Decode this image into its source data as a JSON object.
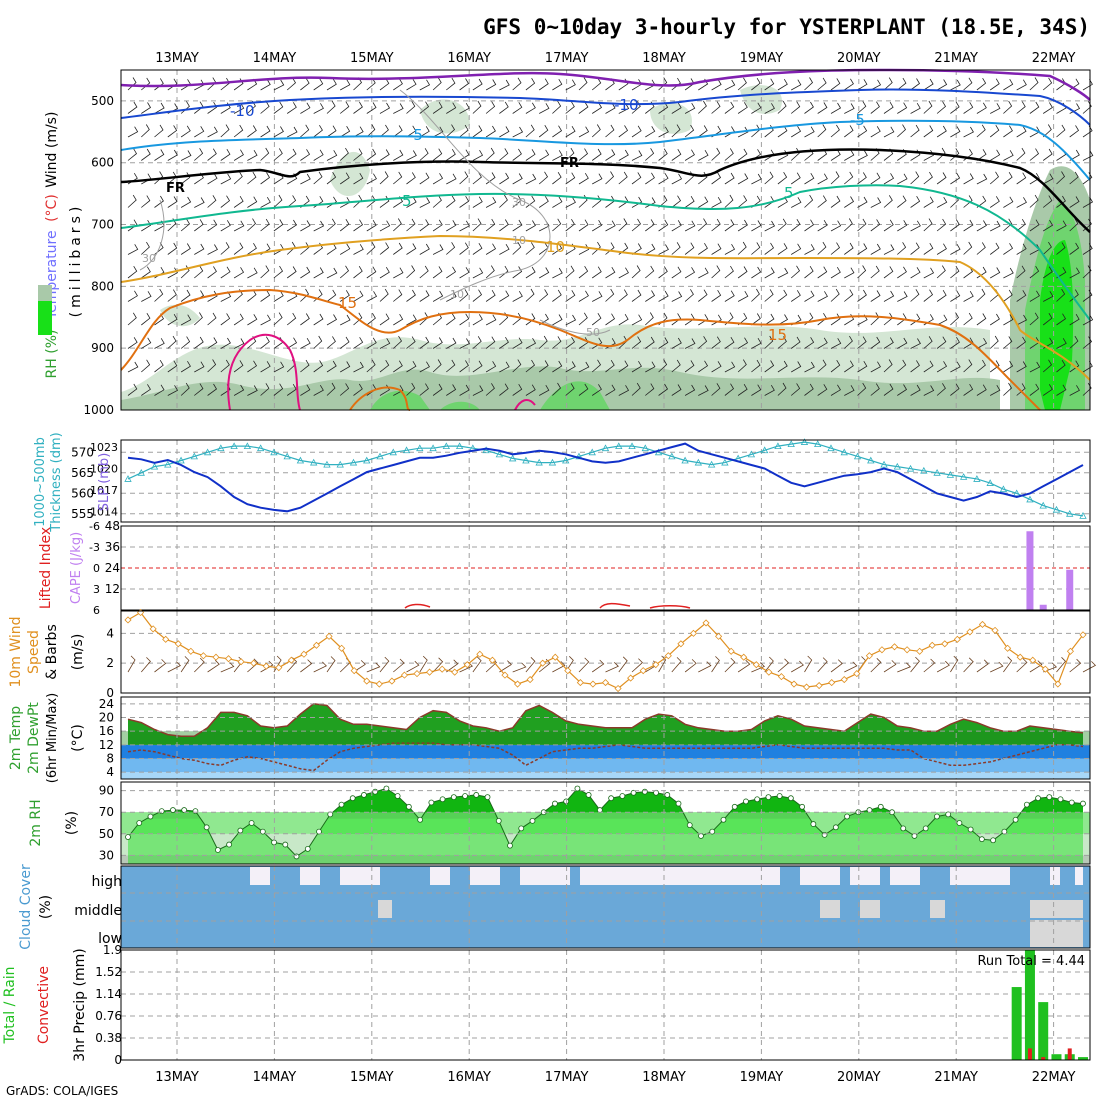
{
  "title": "GFS 0~10day 3-hourly for YSTERPLANT (18.5E, 34S)",
  "footer": "GrADS: COLA/IGES",
  "colors": {
    "rh_light": "#d4e6d4",
    "rh_mid": "#a9c9a9",
    "rh_green": "#6fd46f",
    "rh_bright": "#18e018",
    "thickness": "#30b0c0",
    "slp": "#1030c8",
    "cape": "#c080f0",
    "lifted": "#e02020",
    "wind10": "#e09020",
    "temp_fill": "#20a020",
    "dewpt_fill": "#2080e0",
    "cloud_fill": "#6aa8d8",
    "precip_total": "#20c020",
    "precip_conv": "#e02020"
  },
  "chart_data": [
    {
      "type": "line",
      "name": "upper-air cross-section",
      "x": [
        "13MAY",
        "14MAY",
        "15MAY",
        "16MAY",
        "17MAY",
        "18MAY",
        "19MAY",
        "20MAY",
        "21MAY",
        "22MAY"
      ],
      "ylabel_parts": [
        "RH (%)",
        "Temperature",
        "(°C)",
        "Wind (m/s)"
      ],
      "ylabel2": "(millibars)",
      "yticks": [
        500,
        600,
        700,
        800,
        900,
        1000
      ],
      "ylim": [
        1000,
        450
      ],
      "contour_labels": [
        "-10",
        "-10",
        "-5",
        "-5",
        "FR",
        "FR",
        "5",
        "5",
        "10",
        "15",
        "15",
        "30",
        "30",
        "10",
        "10",
        "50"
      ]
    },
    {
      "type": "line",
      "name": "thickness and SLP",
      "ylabel_left": [
        "1000~500mb",
        "Thickness (dm)"
      ],
      "ylabel_right": "SLP (mb)",
      "yticks_left": [
        555,
        560,
        565,
        570
      ],
      "yticks_right": [
        1014,
        1017,
        1020,
        1023
      ],
      "series": [
        {
          "values": [
            563.5,
            565,
            566.5,
            567,
            568,
            569,
            570,
            571,
            571.5,
            571.5,
            571,
            570,
            569,
            568,
            567.5,
            567,
            567,
            567.5,
            568,
            569,
            570,
            570.5,
            571,
            571,
            571.5,
            571.5,
            571,
            570.5,
            569.5,
            568.5,
            568,
            567.5,
            567.5,
            568,
            569,
            570,
            571,
            571.5,
            571.5,
            571,
            570,
            569,
            568,
            567.5,
            567,
            567.5,
            568.5,
            569.5,
            570.5,
            571.5,
            572,
            572.5,
            572,
            571,
            570,
            569,
            568,
            567,
            566.5,
            566,
            565.5,
            565,
            564.5,
            564,
            563.5,
            562.5,
            561,
            560,
            558.5,
            557,
            556,
            555,
            554.5
          ]
        },
        {
          "values": [
            1021.5,
            1021.3,
            1020.8,
            1021.2,
            1020.5,
            1019.5,
            1018.8,
            1017.5,
            1016,
            1015,
            1014.5,
            1014.2,
            1014,
            1014.5,
            1015.5,
            1016.5,
            1017.5,
            1018.5,
            1019.5,
            1020,
            1020.5,
            1021,
            1021.5,
            1021.5,
            1021.8,
            1022.2,
            1022.5,
            1022.8,
            1022.5,
            1022,
            1022.2,
            1022.5,
            1022.3,
            1022,
            1021.5,
            1021,
            1020.8,
            1021,
            1021.5,
            1022,
            1022.5,
            1023,
            1023.5,
            1022.5,
            1022,
            1021.5,
            1021,
            1020.5,
            1020,
            1019,
            1018,
            1017.5,
            1018,
            1018.5,
            1019,
            1019.2,
            1019.5,
            1020,
            1019.5,
            1018.5,
            1017.5,
            1016.5,
            1016,
            1015.5,
            1016,
            1016.8,
            1016.5,
            1016,
            1016.5,
            1017.5,
            1018.5,
            1019.5,
            1020.5
          ]
        }
      ]
    },
    {
      "type": "bar",
      "name": "lifted index and CAPE",
      "ylabel_left": "Lifted Index",
      "ylabel_right": "CAPE (J/kg)",
      "yticks_left": [
        -6,
        -3,
        0,
        3,
        6
      ],
      "yticks_right": [
        12,
        24,
        36,
        48
      ],
      "ylim_right": [
        0,
        48
      ],
      "series": [
        {
          "values": [
            0,
            0,
            0,
            0,
            0,
            0,
            0,
            0,
            0,
            0,
            0,
            0,
            0,
            0,
            0,
            0,
            0,
            0,
            0,
            0,
            0,
            0,
            0,
            0,
            0,
            0,
            0,
            0,
            0,
            0,
            0,
            0,
            0,
            0,
            0,
            0,
            0,
            0,
            0,
            0,
            0,
            0,
            0,
            0,
            0,
            0,
            0,
            0,
            0,
            0,
            0,
            0,
            0,
            0,
            0,
            0,
            0,
            0,
            0,
            0,
            0,
            0,
            0,
            0,
            0,
            0,
            0,
            0,
            45,
            3,
            0,
            23,
            0
          ]
        }
      ]
    },
    {
      "type": "line",
      "name": "10m wind",
      "ylabel": [
        "10m Wind",
        "Speed",
        "& Barbs",
        "(m/s)"
      ],
      "yticks": [
        0,
        2,
        4
      ],
      "ylim": [
        0,
        5.5
      ],
      "series": [
        {
          "values": [
            4.9,
            5.4,
            4.3,
            3.6,
            3.3,
            2.8,
            2.5,
            2.4,
            2.3,
            2.1,
            2.0,
            1.8,
            1.7,
            2.2,
            2.6,
            3.2,
            3.8,
            3.0,
            1.5,
            0.8,
            0.6,
            0.8,
            1.2,
            1.3,
            1.4,
            1.6,
            1.4,
            1.9,
            2.6,
            2.2,
            1.2,
            0.6,
            0.9,
            2.0,
            2.4,
            1.5,
            0.7,
            0.6,
            0.7,
            0.3,
            1.0,
            1.5,
            1.9,
            2.5,
            3.3,
            4.0,
            4.7,
            3.8,
            2.8,
            2.4,
            1.9,
            1.4,
            1.1,
            0.6,
            0.4,
            0.5,
            0.7,
            0.9,
            1.3,
            2.5,
            2.9,
            3.1,
            2.9,
            2.8,
            3.2,
            3.3,
            3.6,
            4.1,
            4.6,
            4.2,
            3.0,
            2.4,
            2.2,
            1.6,
            0.6,
            2.8,
            3.9
          ]
        }
      ]
    },
    {
      "type": "area",
      "name": "2m temperature",
      "ylabel": [
        "2m Temp",
        "2m DewPt",
        "(6hr Min/Max)",
        "(°C)"
      ],
      "yticks": [
        4,
        8,
        12,
        16,
        20,
        24
      ],
      "ylim": [
        2,
        26
      ],
      "series": [
        {
          "values": [
            19.5,
            18.5,
            16.5,
            15,
            14.5,
            14.5,
            17,
            21.5,
            21.5,
            20.5,
            17.5,
            17,
            17.5,
            21,
            24,
            23.5,
            19.5,
            18,
            18,
            17.5,
            17,
            16.5,
            20,
            22,
            21.5,
            19,
            17.5,
            17,
            16,
            17,
            22,
            23.5,
            21.5,
            19,
            18,
            17.5,
            17,
            17,
            17,
            19.5,
            21,
            20.5,
            18,
            17,
            16.5,
            16,
            16,
            16.5,
            19,
            20.5,
            19.5,
            17.5,
            17,
            16.5,
            16,
            18.5,
            21,
            20,
            17.5,
            17,
            16,
            16,
            18,
            19.5,
            18.5,
            17,
            16,
            16,
            17.5,
            17,
            16.5,
            16,
            15.5
          ]
        },
        {
          "values": [
            10,
            10.5,
            10,
            9,
            8,
            7.5,
            6.5,
            6,
            7.5,
            8.5,
            8,
            7,
            6,
            5,
            4.5,
            7.5,
            10,
            11,
            11.5,
            12,
            12.5,
            12.5,
            12.5,
            12.5,
            12,
            12,
            12,
            11.5,
            11,
            9,
            6,
            8,
            10,
            10.5,
            11,
            11,
            11.5,
            12,
            11.5,
            11,
            11,
            11,
            11,
            11,
            11,
            11,
            11,
            11,
            11.5,
            12,
            11.5,
            11,
            11,
            11,
            11,
            11,
            11,
            11,
            10.5,
            10.5,
            8,
            7,
            6,
            6,
            6.5,
            7,
            8,
            9,
            10,
            11,
            12,
            12,
            11.5
          ]
        }
      ]
    },
    {
      "type": "area",
      "name": "2m relative humidity",
      "ylabel": [
        "2m RH",
        "(%)"
      ],
      "yticks": [
        30,
        50,
        70,
        90
      ],
      "ylim": [
        22,
        98
      ],
      "series": [
        {
          "values": [
            47,
            60,
            66,
            71,
            72,
            72,
            71,
            56,
            35,
            40,
            53,
            60,
            52,
            42,
            40,
            29,
            36,
            52,
            68,
            77,
            83,
            86,
            89,
            92,
            85,
            75,
            63,
            79,
            82,
            84,
            85,
            86,
            84,
            62,
            39,
            55,
            62,
            70,
            78,
            80,
            92,
            86,
            72,
            83,
            85,
            88,
            89,
            88,
            86,
            78,
            58,
            48,
            52,
            63,
            75,
            80,
            82,
            84,
            85,
            83,
            75,
            59,
            49,
            56,
            66,
            70,
            72,
            75,
            70,
            55,
            48,
            55,
            66,
            68,
            60,
            54,
            45,
            44,
            52,
            63,
            77,
            83,
            84,
            82,
            79,
            78
          ]
        }
      ]
    },
    {
      "type": "heatmap",
      "name": "cloud cover",
      "ylabel": [
        "Cloud Cover",
        "(%)"
      ],
      "yticks": [
        "high",
        "middle",
        "low"
      ]
    },
    {
      "type": "bar",
      "name": "3hr precipitation",
      "ylabel_left": [
        "Total / Rain",
        "Convective"
      ],
      "ylabel": "3hr Precip (mm)",
      "yticks": [
        0,
        0.38,
        0.76,
        1.14,
        1.52,
        1.9
      ],
      "ylim": [
        0,
        1.9
      ],
      "annotation": "Run Total = 4.44",
      "series": [
        {
          "values": [
            0,
            0,
            0,
            0,
            0,
            0,
            0,
            0,
            0,
            0,
            0,
            0,
            0,
            0,
            0,
            0,
            0,
            0,
            0,
            0,
            0,
            0,
            0,
            0,
            0,
            0,
            0,
            0,
            0,
            0,
            0,
            0,
            0,
            0,
            0,
            0,
            0,
            0,
            0,
            0,
            0,
            0,
            0,
            0,
            0,
            0,
            0,
            0,
            0,
            0,
            0,
            0,
            0,
            0,
            0,
            0,
            0,
            0,
            0,
            0,
            0,
            0,
            0,
            0,
            0,
            0,
            0,
            1.26,
            1.9,
            1.0,
            0.1,
            0.1,
            0.05
          ]
        },
        {
          "values": [
            0,
            0,
            0,
            0,
            0,
            0,
            0,
            0,
            0,
            0,
            0,
            0,
            0,
            0,
            0,
            0,
            0,
            0,
            0,
            0,
            0,
            0,
            0,
            0,
            0,
            0,
            0,
            0,
            0,
            0,
            0,
            0,
            0,
            0,
            0,
            0,
            0,
            0,
            0,
            0,
            0,
            0,
            0,
            0,
            0,
            0,
            0,
            0,
            0,
            0,
            0,
            0,
            0,
            0,
            0,
            0,
            0,
            0,
            0,
            0,
            0,
            0,
            0,
            0,
            0,
            0,
            0,
            0,
            0.2,
            0.05,
            0,
            0.2,
            0
          ]
        }
      ]
    }
  ]
}
